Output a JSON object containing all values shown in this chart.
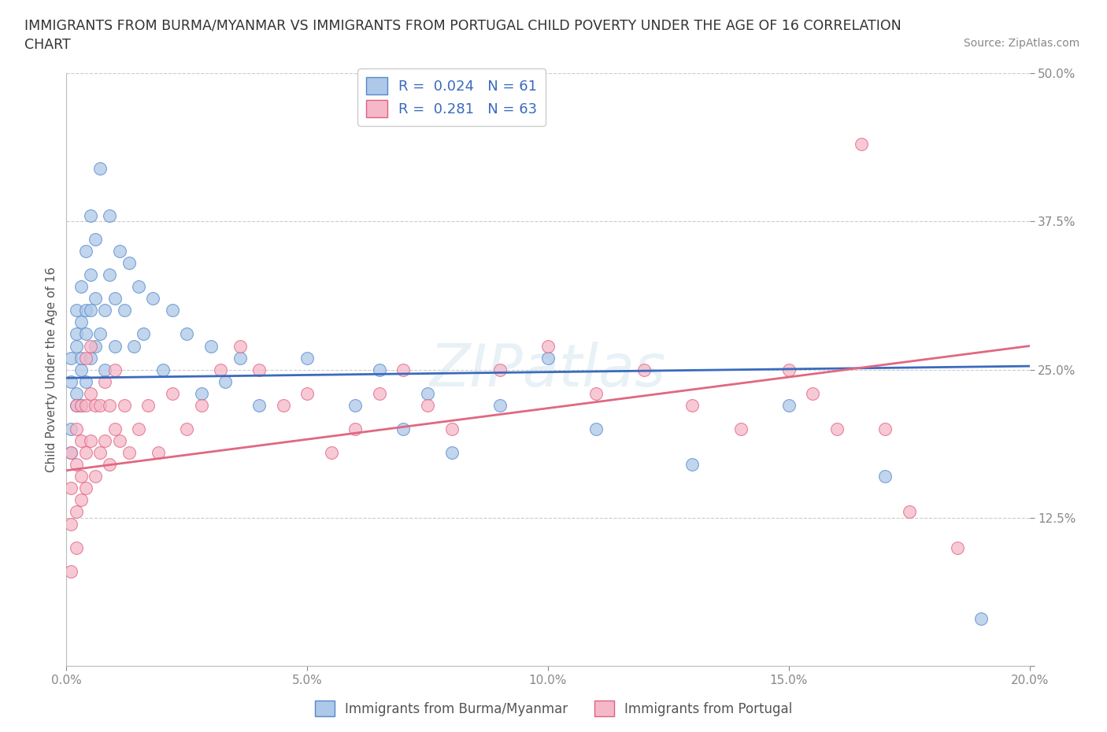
{
  "title_line1": "IMMIGRANTS FROM BURMA/MYANMAR VS IMMIGRANTS FROM PORTUGAL CHILD POVERTY UNDER THE AGE OF 16 CORRELATION",
  "title_line2": "CHART",
  "source": "Source: ZipAtlas.com",
  "ylabel": "Child Poverty Under the Age of 16",
  "xlim": [
    0.0,
    0.2
  ],
  "ylim": [
    0.0,
    0.5
  ],
  "xticks": [
    0.0,
    0.05,
    0.1,
    0.15,
    0.2
  ],
  "xtick_labels": [
    "0.0%",
    "5.0%",
    "10.0%",
    "15.0%",
    "20.0%"
  ],
  "yticks": [
    0.0,
    0.125,
    0.25,
    0.375,
    0.5
  ],
  "ytick_labels": [
    "",
    "12.5%",
    "25.0%",
    "37.5%",
    "50.0%"
  ],
  "blue_R": 0.024,
  "blue_N": 61,
  "pink_R": 0.281,
  "pink_N": 63,
  "blue_color": "#adc8e8",
  "pink_color": "#f5b8c8",
  "blue_edge_color": "#5588cc",
  "pink_edge_color": "#e06080",
  "blue_line_color": "#3a6bbd",
  "pink_line_color": "#e06880",
  "legend_label_blue": "Immigrants from Burma/Myanmar",
  "legend_label_pink": "Immigrants from Portugal",
  "watermark": "ZIPatlas",
  "background_color": "#ffffff",
  "grid_color": "#cccccc",
  "blue_trend_x0": 0.0,
  "blue_trend_y0": 0.243,
  "blue_trend_x1": 0.2,
  "blue_trend_y1": 0.253,
  "pink_trend_x0": 0.0,
  "pink_trend_y0": 0.165,
  "pink_trend_x1": 0.2,
  "pink_trend_y1": 0.27,
  "blue_x": [
    0.001,
    0.001,
    0.001,
    0.001,
    0.002,
    0.002,
    0.002,
    0.002,
    0.002,
    0.003,
    0.003,
    0.003,
    0.003,
    0.003,
    0.004,
    0.004,
    0.004,
    0.004,
    0.005,
    0.005,
    0.005,
    0.005,
    0.006,
    0.006,
    0.006,
    0.007,
    0.007,
    0.008,
    0.008,
    0.009,
    0.009,
    0.01,
    0.01,
    0.011,
    0.012,
    0.013,
    0.014,
    0.015,
    0.016,
    0.018,
    0.02,
    0.022,
    0.025,
    0.028,
    0.03,
    0.033,
    0.036,
    0.04,
    0.05,
    0.06,
    0.065,
    0.07,
    0.075,
    0.08,
    0.09,
    0.1,
    0.11,
    0.13,
    0.15,
    0.17,
    0.19
  ],
  "blue_y": [
    0.24,
    0.26,
    0.2,
    0.18,
    0.27,
    0.23,
    0.28,
    0.22,
    0.3,
    0.25,
    0.29,
    0.22,
    0.26,
    0.32,
    0.24,
    0.28,
    0.3,
    0.35,
    0.26,
    0.3,
    0.33,
    0.38,
    0.27,
    0.31,
    0.36,
    0.28,
    0.42,
    0.3,
    0.25,
    0.33,
    0.38,
    0.27,
    0.31,
    0.35,
    0.3,
    0.34,
    0.27,
    0.32,
    0.28,
    0.31,
    0.25,
    0.3,
    0.28,
    0.23,
    0.27,
    0.24,
    0.26,
    0.22,
    0.26,
    0.22,
    0.25,
    0.2,
    0.23,
    0.18,
    0.22,
    0.26,
    0.2,
    0.17,
    0.22,
    0.16,
    0.04
  ],
  "pink_x": [
    0.001,
    0.001,
    0.001,
    0.001,
    0.002,
    0.002,
    0.002,
    0.002,
    0.002,
    0.003,
    0.003,
    0.003,
    0.003,
    0.004,
    0.004,
    0.004,
    0.004,
    0.005,
    0.005,
    0.005,
    0.006,
    0.006,
    0.007,
    0.007,
    0.008,
    0.008,
    0.009,
    0.009,
    0.01,
    0.01,
    0.011,
    0.012,
    0.013,
    0.015,
    0.017,
    0.019,
    0.022,
    0.025,
    0.028,
    0.032,
    0.036,
    0.04,
    0.045,
    0.05,
    0.055,
    0.06,
    0.065,
    0.07,
    0.075,
    0.08,
    0.09,
    0.1,
    0.11,
    0.12,
    0.13,
    0.14,
    0.15,
    0.155,
    0.16,
    0.165,
    0.17,
    0.175,
    0.185
  ],
  "pink_y": [
    0.18,
    0.15,
    0.12,
    0.08,
    0.17,
    0.13,
    0.2,
    0.1,
    0.22,
    0.16,
    0.19,
    0.14,
    0.22,
    0.18,
    0.22,
    0.15,
    0.26,
    0.19,
    0.23,
    0.27,
    0.22,
    0.16,
    0.18,
    0.22,
    0.19,
    0.24,
    0.17,
    0.22,
    0.2,
    0.25,
    0.19,
    0.22,
    0.18,
    0.2,
    0.22,
    0.18,
    0.23,
    0.2,
    0.22,
    0.25,
    0.27,
    0.25,
    0.22,
    0.23,
    0.18,
    0.2,
    0.23,
    0.25,
    0.22,
    0.2,
    0.25,
    0.27,
    0.23,
    0.25,
    0.22,
    0.2,
    0.25,
    0.23,
    0.2,
    0.44,
    0.2,
    0.13,
    0.1
  ]
}
